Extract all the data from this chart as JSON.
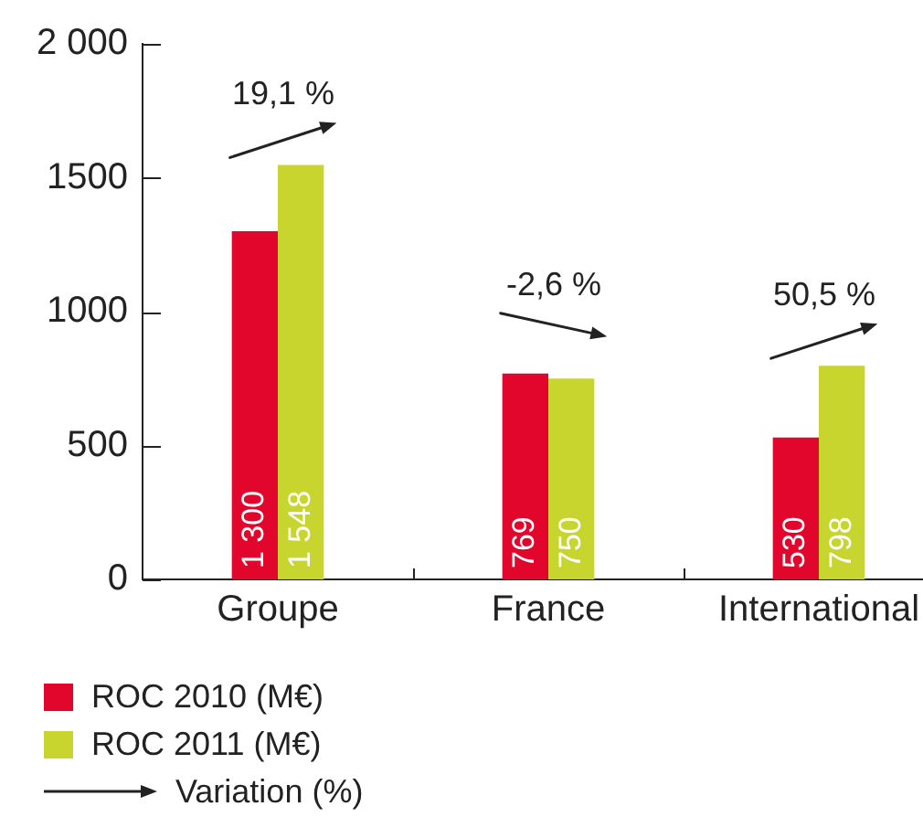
{
  "chart_data": {
    "type": "bar",
    "categories": [
      "Groupe",
      "France",
      "International"
    ],
    "series": [
      {
        "name": "ROC 2010 (M€)",
        "color": "#e2062c",
        "values": [
          1300,
          769,
          530
        ],
        "value_labels": [
          "1 300",
          "769",
          "530"
        ]
      },
      {
        "name": "ROC 2011 (M€)",
        "color": "#c9d52f",
        "values": [
          1548,
          750,
          798
        ],
        "value_labels": [
          "1 548",
          "750",
          "798"
        ]
      }
    ],
    "ylim": [
      0,
      2000
    ],
    "yticks": [
      0,
      500,
      1000,
      1500,
      {
        "value": 2000,
        "label": "2 000"
      }
    ],
    "legend": "bottom left",
    "annotations": [
      "19,1 %",
      "-2,6 %",
      "50,5 %",
      "Variation (%)"
    ]
  }
}
